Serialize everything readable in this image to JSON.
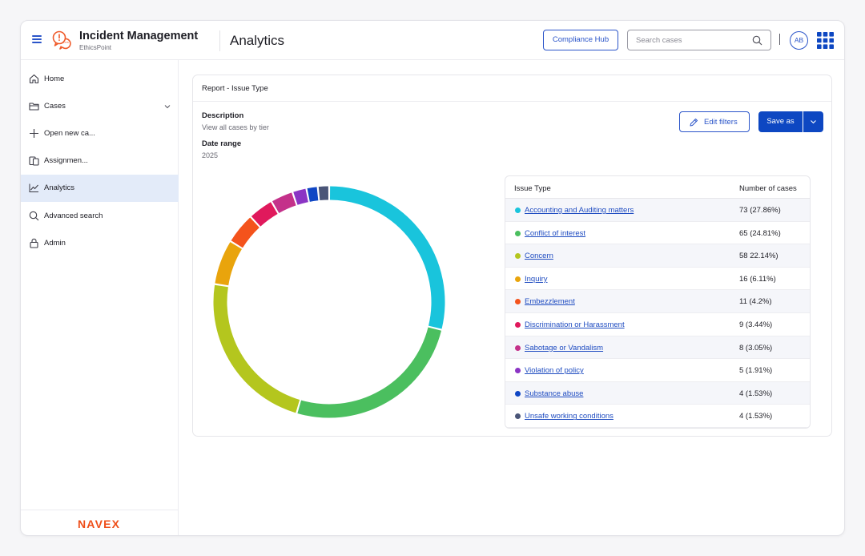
{
  "header": {
    "app_title": "Incident Management",
    "app_subtitle": "EthicsPoint",
    "page_title": "Analytics",
    "compliance_hub_label": "Compliance Hub",
    "search_placeholder": "Search cases",
    "search_value": "",
    "avatar_initials": "AB"
  },
  "sidebar": {
    "items": [
      {
        "label": "Home",
        "icon": "home-icon"
      },
      {
        "label": "Cases",
        "icon": "folder-icon"
      },
      {
        "label": "Open new ca...",
        "icon": "plus-icon"
      },
      {
        "label": "Assignmen...",
        "icon": "assignments-icon"
      },
      {
        "label": "Analytics",
        "icon": "analytics-icon",
        "active": true
      },
      {
        "label": "Advanced search",
        "icon": "search-icon"
      },
      {
        "label": "Admin",
        "icon": "lock-icon"
      }
    ],
    "footer_logo": "NAVEX"
  },
  "report": {
    "title": "Report - Issue Type",
    "description_label": "Description",
    "description_value": "View all cases by tier",
    "date_range_label": "Date range",
    "date_range_value": "2025",
    "edit_filters_label": "Edit filters",
    "save_as_label": "Save as"
  },
  "table": {
    "col1": "Issue Type",
    "col2": "Number of cases",
    "rows": [
      {
        "name": "Accounting and  Auditing matters",
        "count": "73 (27.86%)"
      },
      {
        "name": "Conflict of interest",
        "count": "65 (24.81%)"
      },
      {
        "name": "Concern",
        "count": "58 22.14%)"
      },
      {
        "name": "Inquiry",
        "count": "16 (6.11%)"
      },
      {
        "name": "Embezzlement",
        "count": "11  (4.2%)"
      },
      {
        "name": "Discrimination or Harassment",
        "count": "9 (3.44%)"
      },
      {
        "name": "Sabotage or Vandalism",
        "count": "8 (3.05%)"
      },
      {
        "name": "Violation of policy",
        "count": "5 (1.91%)"
      },
      {
        "name": "Substance abuse",
        "count": "4 (1.53%)"
      },
      {
        "name": "Unsafe working conditions",
        "count": "4 (1.53%)"
      }
    ]
  },
  "chart_data": {
    "type": "pie",
    "title": "",
    "categories": [
      "Accounting and  Auditing matters",
      "Conflict of interest",
      "Concern",
      "Inquiry",
      "Embezzlement",
      "Discrimination or Harassment",
      "Sabotage or Vandalism",
      "Violation of policy",
      "Substance abuse",
      "Unsafe working conditions"
    ],
    "values": [
      73,
      65,
      58,
      16,
      11,
      9,
      8,
      5,
      4,
      4
    ],
    "colors": [
      "#19c4dc",
      "#4bbf5f",
      "#b4c61e",
      "#e9a40c",
      "#f4531c",
      "#e0195c",
      "#c4318a",
      "#8b34c4",
      "#0f46c4",
      "#4a5578"
    ]
  }
}
